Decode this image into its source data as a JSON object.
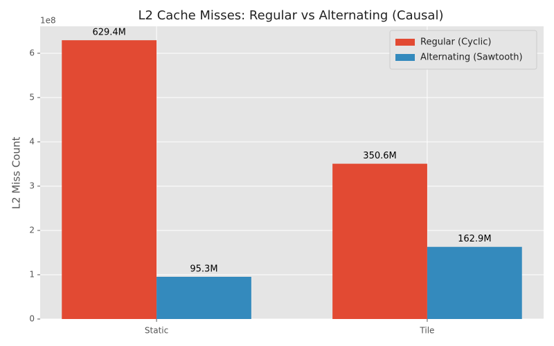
{
  "chart_data": {
    "type": "bar",
    "title": "L2 Cache Misses: Regular vs Alternating (Causal)",
    "y_label": "L2 Miss Count",
    "y_offset_label": "1e8",
    "categories": [
      "Static",
      "Tile"
    ],
    "series": [
      {
        "name": "Regular (Cyclic)",
        "color": "#e24a33",
        "values": [
          629400000,
          350600000
        ],
        "value_labels": [
          "629.4M",
          "350.6M"
        ]
      },
      {
        "name": "Alternating (Sawtooth)",
        "color": "#348abd",
        "values": [
          95300000,
          162900000
        ],
        "value_labels": [
          "95.3M",
          "162.9M"
        ]
      }
    ],
    "ylim": [
      0,
      660870000
    ],
    "yticks": [
      {
        "value": 0,
        "label": "0"
      },
      {
        "value": 100000000,
        "label": "1"
      },
      {
        "value": 200000000,
        "label": "2"
      },
      {
        "value": 300000000,
        "label": "3"
      },
      {
        "value": 400000000,
        "label": "4"
      },
      {
        "value": 500000000,
        "label": "5"
      },
      {
        "value": 600000000,
        "label": "6"
      }
    ],
    "grid": true,
    "legend": "upper-right"
  }
}
